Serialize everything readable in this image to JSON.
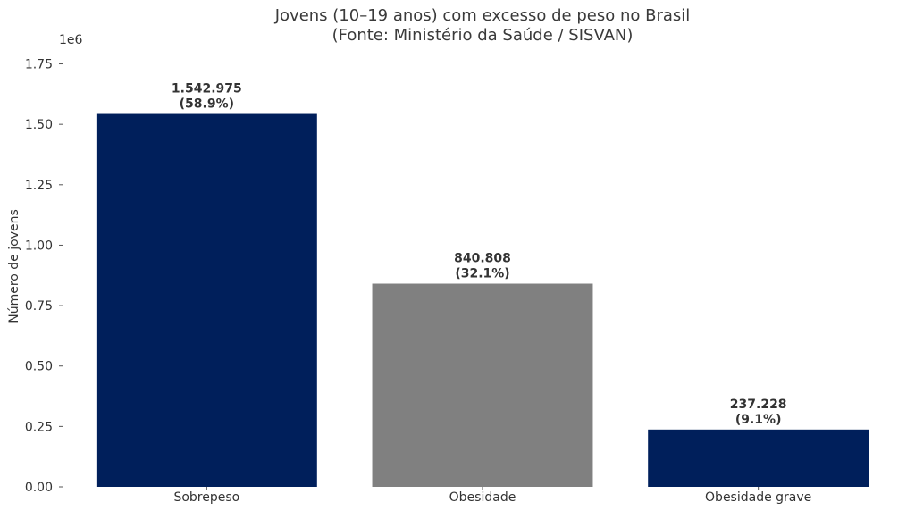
{
  "chart_data": {
    "type": "bar",
    "title": "Jovens (10–19 anos) com excesso de peso no Brasil",
    "subtitle": "(Fonte: Ministério da Saúde / SISVAN)",
    "xlabel": "",
    "ylabel": "Número de jovens",
    "y_offset_label": "1e6",
    "ylim": [
      0,
      1.8
    ],
    "yticks": [
      0.0,
      0.25,
      0.5,
      0.75,
      1.0,
      1.25,
      1.5,
      1.75
    ],
    "ytick_labels": [
      "0.00",
      "0.25",
      "0.50",
      "0.75",
      "1.00",
      "1.25",
      "1.50",
      "1.75"
    ],
    "categories": [
      "Sobrepeso",
      "Obesidade",
      "Obesidade grave"
    ],
    "values": [
      1542975,
      840808,
      237228
    ],
    "value_labels": [
      "1.542.975",
      "840.808",
      "237.228"
    ],
    "percent_labels": [
      "(58.9%)",
      "(32.1%)",
      "(9.1%)"
    ],
    "colors": [
      "#001f5b",
      "#808080",
      "#001f5b"
    ],
    "grid": false,
    "legend": "none"
  }
}
